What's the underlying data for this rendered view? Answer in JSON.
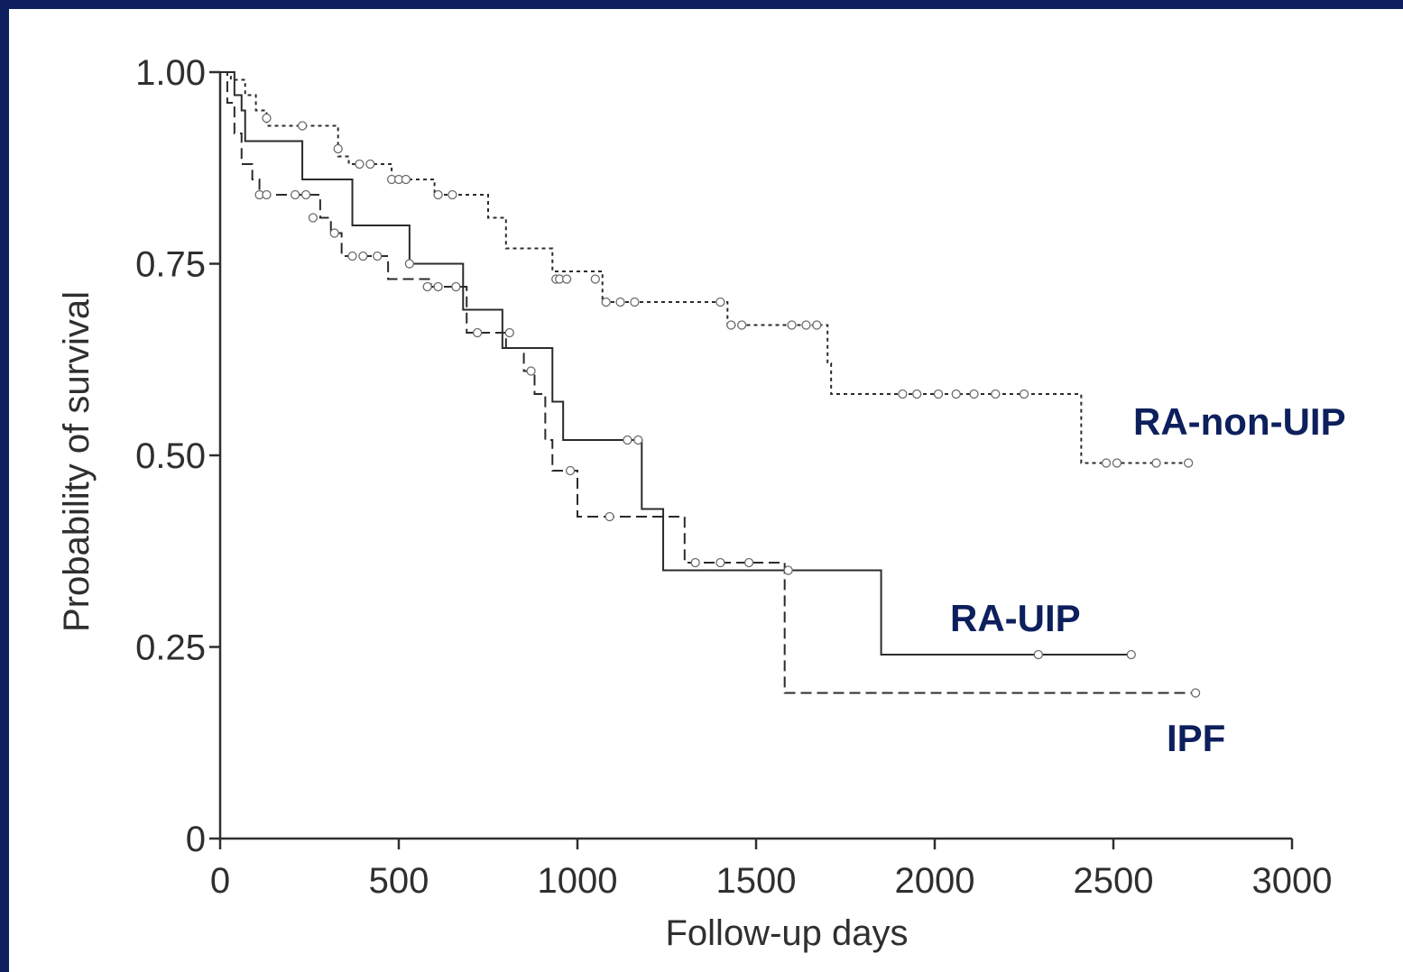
{
  "colors": {
    "frame": "#0d1f5c",
    "background": "#ffffff",
    "axis": "#2f2f2f",
    "series_label": "#0d1f5c"
  },
  "chart_data": {
    "type": "line",
    "subtype": "kaplan-meier step",
    "xlabel": "Follow-up days",
    "ylabel": "Probability of survival",
    "xlim": [
      0,
      3000
    ],
    "ylim": [
      0,
      1
    ],
    "x_ticks": [
      0,
      500,
      1000,
      1500,
      2000,
      2500,
      3000
    ],
    "x_tick_labels": [
      "0",
      "500",
      "1000",
      "1500",
      "2000",
      "2500",
      "3000"
    ],
    "y_ticks": [
      0,
      0.25,
      0.5,
      0.75,
      1.0
    ],
    "y_tick_labels": [
      "0",
      "0.25",
      "0.50",
      "0.75",
      "1.00"
    ],
    "grid": false,
    "legend": "none",
    "series": [
      {
        "name": "RA-non-UIP",
        "line_style": "dotted",
        "steps": [
          [
            0,
            1.0
          ],
          [
            30,
            0.99
          ],
          [
            70,
            0.97
          ],
          [
            100,
            0.95
          ],
          [
            130,
            0.93
          ],
          [
            330,
            0.89
          ],
          [
            360,
            0.88
          ],
          [
            480,
            0.86
          ],
          [
            600,
            0.84
          ],
          [
            750,
            0.81
          ],
          [
            800,
            0.77
          ],
          [
            930,
            0.74
          ],
          [
            1070,
            0.7
          ],
          [
            1420,
            0.67
          ],
          [
            1700,
            0.62
          ],
          [
            1710,
            0.58
          ],
          [
            2410,
            0.49
          ],
          [
            2700,
            0.49
          ]
        ],
        "censored": [
          [
            130,
            0.94
          ],
          [
            230,
            0.93
          ],
          [
            330,
            0.9
          ],
          [
            390,
            0.88
          ],
          [
            420,
            0.88
          ],
          [
            480,
            0.86
          ],
          [
            500,
            0.86
          ],
          [
            520,
            0.86
          ],
          [
            610,
            0.84
          ],
          [
            650,
            0.84
          ],
          [
            940,
            0.73
          ],
          [
            950,
            0.73
          ],
          [
            970,
            0.73
          ],
          [
            1050,
            0.73
          ],
          [
            1080,
            0.7
          ],
          [
            1120,
            0.7
          ],
          [
            1160,
            0.7
          ],
          [
            1400,
            0.7
          ],
          [
            1430,
            0.67
          ],
          [
            1460,
            0.67
          ],
          [
            1600,
            0.67
          ],
          [
            1640,
            0.67
          ],
          [
            1670,
            0.67
          ],
          [
            1910,
            0.58
          ],
          [
            1950,
            0.58
          ],
          [
            2010,
            0.58
          ],
          [
            2060,
            0.58
          ],
          [
            2110,
            0.58
          ],
          [
            2170,
            0.58
          ],
          [
            2250,
            0.58
          ],
          [
            2480,
            0.49
          ],
          [
            2510,
            0.49
          ],
          [
            2620,
            0.49
          ],
          [
            2710,
            0.49
          ]
        ]
      },
      {
        "name": "RA-UIP",
        "line_style": "solid",
        "steps": [
          [
            0,
            1.0
          ],
          [
            40,
            0.97
          ],
          [
            60,
            0.95
          ],
          [
            70,
            0.91
          ],
          [
            230,
            0.86
          ],
          [
            370,
            0.8
          ],
          [
            530,
            0.75
          ],
          [
            680,
            0.69
          ],
          [
            790,
            0.64
          ],
          [
            930,
            0.57
          ],
          [
            960,
            0.52
          ],
          [
            1180,
            0.43
          ],
          [
            1240,
            0.35
          ],
          [
            1850,
            0.24
          ],
          [
            2550,
            0.24
          ]
        ],
        "censored": [
          [
            530,
            0.75
          ],
          [
            1140,
            0.52
          ],
          [
            1170,
            0.52
          ],
          [
            2290,
            0.24
          ],
          [
            2550,
            0.24
          ]
        ]
      },
      {
        "name": "IPF",
        "line_style": "dashed",
        "steps": [
          [
            0,
            1.0
          ],
          [
            20,
            0.96
          ],
          [
            40,
            0.92
          ],
          [
            60,
            0.88
          ],
          [
            90,
            0.86
          ],
          [
            110,
            0.84
          ],
          [
            280,
            0.81
          ],
          [
            310,
            0.79
          ],
          [
            340,
            0.76
          ],
          [
            470,
            0.73
          ],
          [
            590,
            0.72
          ],
          [
            690,
            0.66
          ],
          [
            800,
            0.64
          ],
          [
            850,
            0.61
          ],
          [
            880,
            0.58
          ],
          [
            910,
            0.52
          ],
          [
            930,
            0.48
          ],
          [
            1000,
            0.42
          ],
          [
            1300,
            0.36
          ],
          [
            1580,
            0.19
          ],
          [
            2730,
            0.19
          ]
        ],
        "censored": [
          [
            110,
            0.84
          ],
          [
            130,
            0.84
          ],
          [
            210,
            0.84
          ],
          [
            240,
            0.84
          ],
          [
            260,
            0.81
          ],
          [
            320,
            0.79
          ],
          [
            370,
            0.76
          ],
          [
            400,
            0.76
          ],
          [
            440,
            0.76
          ],
          [
            580,
            0.72
          ],
          [
            610,
            0.72
          ],
          [
            660,
            0.72
          ],
          [
            720,
            0.66
          ],
          [
            810,
            0.66
          ],
          [
            870,
            0.61
          ],
          [
            980,
            0.48
          ],
          [
            1090,
            0.42
          ],
          [
            1330,
            0.36
          ],
          [
            1400,
            0.36
          ],
          [
            1480,
            0.36
          ],
          [
            1590,
            0.35
          ],
          [
            2730,
            0.19
          ]
        ]
      }
    ],
    "annotations": [
      {
        "text": "RA-non-UIP",
        "series": "RA-non-UIP"
      },
      {
        "text": "RA-UIP",
        "series": "RA-UIP"
      },
      {
        "text": "IPF",
        "series": "IPF"
      }
    ]
  }
}
